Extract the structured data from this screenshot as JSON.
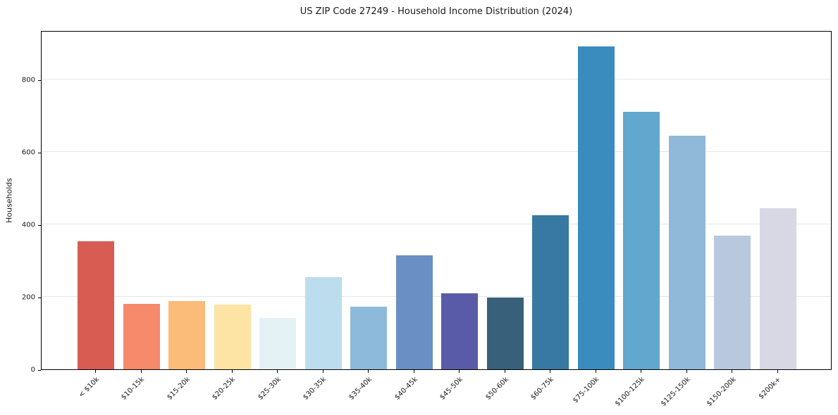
{
  "chart_data": {
    "type": "bar",
    "title": "US ZIP Code 27249 - Household Income Distribution (2024)",
    "xlabel": "",
    "ylabel": "Households",
    "categories": [
      "< $10k",
      "$10-15k",
      "$15-20k",
      "$20-25k",
      "$25-30k",
      "$30-35k",
      "$35-40k",
      "$40-45k",
      "$45-50k",
      "$50-60k",
      "$60-75k",
      "$75-100k",
      "$100-125k",
      "$125-150k",
      "$150-200k",
      "$200k+"
    ],
    "values": [
      353,
      180,
      188,
      178,
      142,
      255,
      172,
      315,
      209,
      197,
      425,
      890,
      710,
      645,
      368,
      445
    ],
    "bar_colors": [
      "#d85c52",
      "#f68a6a",
      "#fbbb79",
      "#fde3a4",
      "#e4f1f5",
      "#bcdded",
      "#8dbadb",
      "#6a8fc4",
      "#5a5ba8",
      "#38607a",
      "#3779a1",
      "#3a8cbe",
      "#61a7ce",
      "#90b8d8",
      "#b7c8df",
      "#d7d8e4"
    ],
    "yticks": [
      0,
      200,
      400,
      600,
      800
    ],
    "ylim": [
      0,
      935
    ],
    "grid": "horizontal",
    "gridline_color": "#e7e7e7",
    "axis_color": "#000000",
    "background_color": "#ffffff",
    "legend": "none"
  }
}
